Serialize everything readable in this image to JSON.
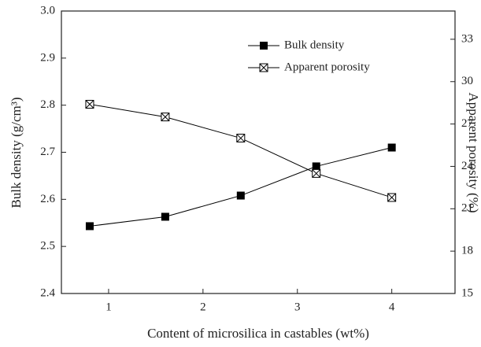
{
  "chart_data": {
    "type": "line",
    "x_label": "Content of microsilica in castables (wt%)",
    "y_label": "Bulk density (g/cm³)",
    "y2_label": "Apparent porosity (%)",
    "x": [
      0.8,
      1.6,
      2.4,
      3.2,
      4.0
    ],
    "xlim": [
      0.5,
      4.67
    ],
    "xticks": [
      1,
      2,
      3,
      4
    ],
    "ylim": [
      2.4,
      3.0
    ],
    "yticks": [
      2.4,
      2.5,
      2.6,
      2.7,
      2.8,
      2.9,
      {
        "value": 3,
        "label": "3.0"
      }
    ],
    "y2lim": [
      15,
      35
    ],
    "y2ticks": [
      15,
      18,
      21,
      24,
      27,
      30,
      33
    ],
    "legend": "upper-right",
    "series": [
      {
        "name": "Bulk density",
        "color": "#000000",
        "marker": "filled-square",
        "values": [
          2.543,
          2.563,
          2.608,
          2.67,
          2.71
        ]
      },
      {
        "name": "Apparent porosity",
        "color": "#000000",
        "marker": "crossed-square",
        "axis": "y2",
        "values": [
          28.4,
          27.5,
          26.0,
          23.5,
          21.8
        ]
      }
    ]
  }
}
